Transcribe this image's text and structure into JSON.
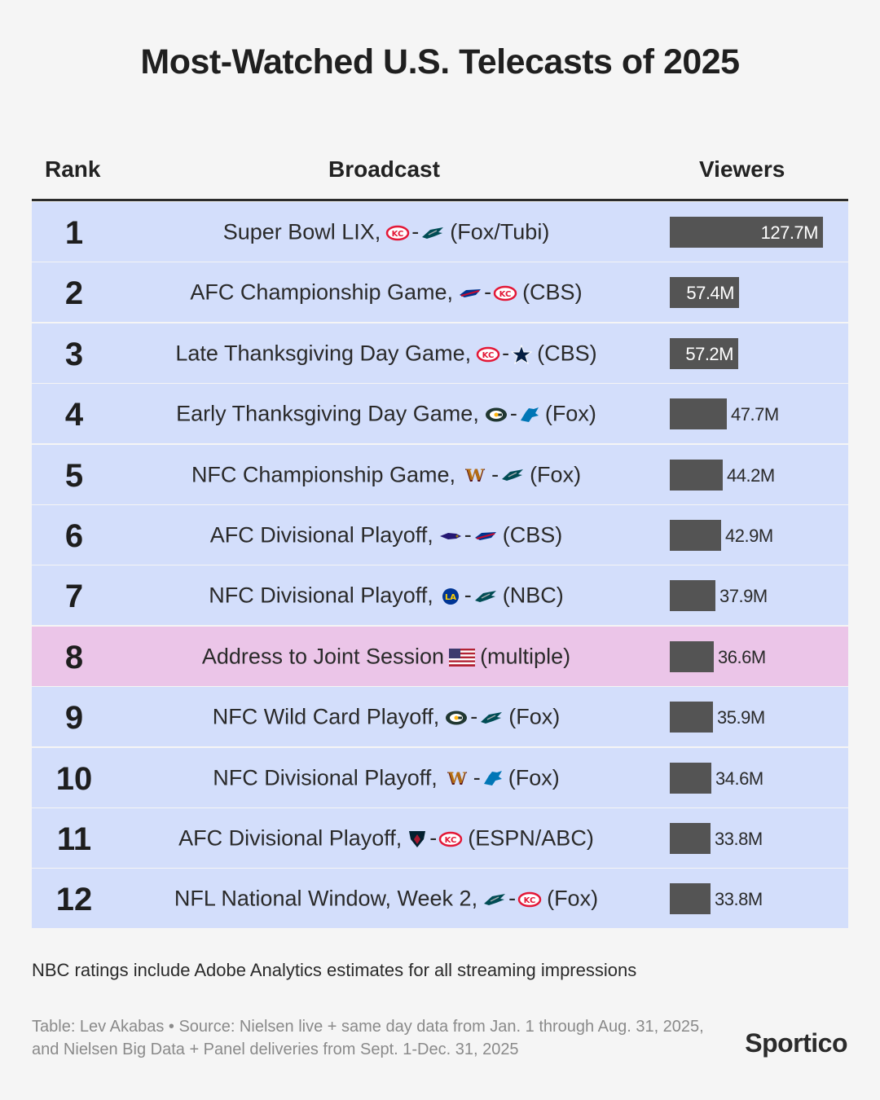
{
  "title": "Most-Watched U.S. Telecasts of 2025",
  "headers": {
    "rank": "Rank",
    "broadcast": "Broadcast",
    "viewers": "Viewers"
  },
  "chart_data": {
    "type": "bar",
    "categories": [
      "1",
      "2",
      "3",
      "4",
      "5",
      "6",
      "7",
      "8",
      "9",
      "10",
      "11",
      "12"
    ],
    "value_unit": "M",
    "max_value": 127.7,
    "rows": [
      {
        "rank": "1",
        "event": "Super Bowl LIX,",
        "teams": [
          "chiefs-logo",
          "eagles-logo"
        ],
        "network": "(Fox/Tubi)",
        "value": 127.7,
        "label": "127.7M",
        "highlight": false
      },
      {
        "rank": "2",
        "event": "AFC Championship Game,",
        "teams": [
          "bills-logo",
          "chiefs-logo"
        ],
        "network": "(CBS)",
        "value": 57.4,
        "label": "57.4M",
        "highlight": false
      },
      {
        "rank": "3",
        "event": "Late Thanksgiving Day Game,",
        "teams": [
          "chiefs-logo",
          "cowboys-logo"
        ],
        "network": "(CBS)",
        "value": 57.2,
        "label": "57.2M",
        "highlight": false
      },
      {
        "rank": "4",
        "event": "Early Thanksgiving Day Game,",
        "teams": [
          "packers-logo",
          "lions-logo"
        ],
        "network": "(Fox)",
        "value": 47.7,
        "label": "47.7M",
        "highlight": false
      },
      {
        "rank": "5",
        "event": "NFC Championship Game,",
        "teams": [
          "commanders-logo",
          "eagles-logo"
        ],
        "network": "(Fox)",
        "value": 44.2,
        "label": "44.2M",
        "highlight": false
      },
      {
        "rank": "6",
        "event": "AFC Divisional Playoff,",
        "teams": [
          "ravens-logo",
          "bills-logo"
        ],
        "network": "(CBS)",
        "value": 42.9,
        "label": "42.9M",
        "highlight": false
      },
      {
        "rank": "7",
        "event": "NFC Divisional Playoff,",
        "teams": [
          "rams-logo",
          "eagles-logo"
        ],
        "network": "(NBC)",
        "value": 37.9,
        "label": "37.9M",
        "highlight": false
      },
      {
        "rank": "8",
        "event": "Address to Joint Session",
        "teams": [
          "us-flag"
        ],
        "network": "(multiple)",
        "value": 36.6,
        "label": "36.6M",
        "highlight": true
      },
      {
        "rank": "9",
        "event": "NFC Wild Card Playoff,",
        "teams": [
          "packers-logo",
          "eagles-logo"
        ],
        "network": "(Fox)",
        "value": 35.9,
        "label": "35.9M",
        "highlight": false
      },
      {
        "rank": "10",
        "event": "NFC Divisional Playoff,",
        "teams": [
          "commanders-logo",
          "lions-logo"
        ],
        "network": "(Fox)",
        "value": 34.6,
        "label": "34.6M",
        "highlight": false
      },
      {
        "rank": "11",
        "event": "AFC Divisional Playoff,",
        "teams": [
          "texans-logo",
          "chiefs-logo"
        ],
        "network": "(ESPN/ABC)",
        "value": 33.8,
        "label": "33.8M",
        "highlight": false
      },
      {
        "rank": "12",
        "event": "NFL National Window, Week 2,",
        "teams": [
          "eagles-logo",
          "chiefs-logo"
        ],
        "network": "(Fox)",
        "value": 33.8,
        "label": "33.8M",
        "highlight": false
      }
    ]
  },
  "colors": {
    "row": "#d3defb",
    "highlight_row": "#ebc5e8",
    "bar": "#545454"
  },
  "note": "NBC ratings include Adobe Analytics estimates for all streaming impressions",
  "source": "Table: Lev Akabas • Source: Nielsen live + same day data from Jan. 1 through Aug. 31, 2025, and Nielsen Big Data + Panel deliveries from Sept. 1-Dec. 31, 2025",
  "brand": "Sportico"
}
